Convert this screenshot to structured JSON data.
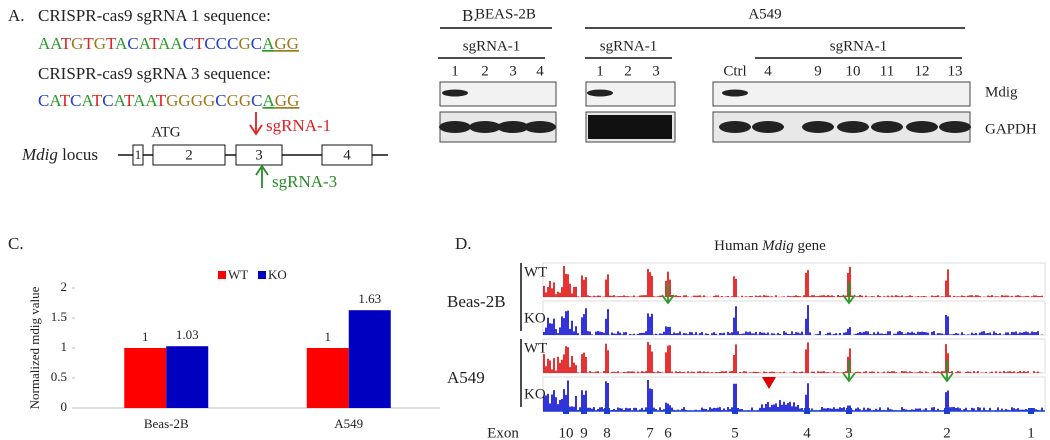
{
  "panel_a": {
    "label": "A.",
    "sgrna1_heading": "CRISPR-cas9 sgRNA 1 sequence:",
    "sgrna1_sequence": "AATGTGTACATAACTCCCGCAGG",
    "sgrna3_heading": "CRISPR-cas9 sgRNA 3 sequence:",
    "sgrna3_sequence": "CATCATCATAATGGGGCGGCAGG",
    "locus_gene": "Mdig",
    "locus_word": "locus",
    "start_codon": "ATG",
    "exons": [
      "1",
      "2",
      "3",
      "4"
    ],
    "sgrna1_site": "sgRNA-1",
    "sgrna3_site": "sgRNA-3"
  },
  "panel_b": {
    "label": "B.",
    "cell_lines": [
      "BEAS-2B",
      "A549"
    ],
    "groups": [
      {
        "heading": "sgRNA-1",
        "lanes": [
          "1",
          "2",
          "3",
          "4"
        ]
      },
      {
        "heading": "sgRNA-1",
        "lanes": [
          "1",
          "2",
          "3"
        ]
      },
      {
        "heading": "sgRNA-1",
        "lanes": [
          "4",
          "9",
          "10",
          "11",
          "12",
          "13"
        ]
      }
    ],
    "control_lane": "Ctrl",
    "proteins": [
      "Mdig",
      "GAPDH"
    ]
  },
  "panel_c": {
    "label": "C."
  },
  "chart_data": {
    "type": "bar",
    "y_label": "Normalized mdig value",
    "categories": [
      "Beas-2B",
      "A549"
    ],
    "series": [
      {
        "name": "WT",
        "color": "#ff0000",
        "values": [
          1,
          1
        ]
      },
      {
        "name": "KO",
        "color": "#0000c0",
        "values": [
          1.03,
          1.63
        ]
      }
    ],
    "ylim": [
      0,
      2
    ],
    "yticks": [
      0,
      0.5,
      1,
      1.5,
      2
    ],
    "legend": "top"
  },
  "panel_d": {
    "label": "D.",
    "title_prefix": "Human",
    "title_gene": "Mdig",
    "title_suffix": "gene",
    "samples": [
      {
        "cell_line": "Beas-2B",
        "conditions": [
          "WT",
          "KO"
        ]
      },
      {
        "cell_line": "A549",
        "conditions": [
          "WT",
          "KO"
        ]
      }
    ],
    "exon_heading": "Exon",
    "exons": [
      "10",
      "9",
      "8",
      "7",
      "6",
      "5",
      "4",
      "3",
      "2",
      "1"
    ]
  }
}
